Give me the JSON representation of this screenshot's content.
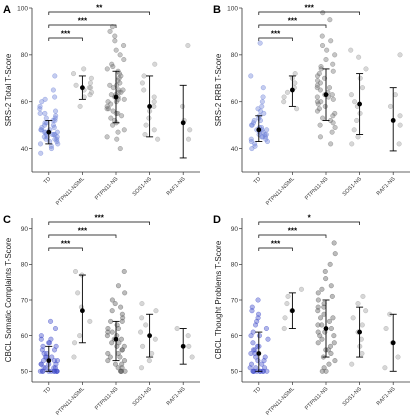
{
  "chart_data": [
    {
      "panel": "A",
      "type": "scatter",
      "ylabel": "SRS-2 Total T-Score",
      "ylim": [
        30,
        100
      ],
      "yticks": [
        40,
        60,
        80,
        100
      ],
      "categories": [
        "TD",
        "PTPN11-NSML",
        "PTPN11-NS",
        "SOS1-NS",
        "RAF1-NS"
      ],
      "colors": [
        "#6b7fd6",
        "#9a9a9a",
        "#6f6f6f",
        "#9a9a9a",
        "#9a9a9a"
      ],
      "summary": [
        {
          "mean": 47,
          "low": 42,
          "high": 52
        },
        {
          "mean": 66,
          "low": 61,
          "high": 71
        },
        {
          "mean": 62,
          "low": 51,
          "high": 73
        },
        {
          "mean": 58,
          "low": 45,
          "high": 71
        },
        {
          "mean": 51,
          "low": 36,
          "high": 67
        }
      ],
      "points": [
        [
          38,
          40,
          41,
          42,
          42,
          43,
          43,
          44,
          44,
          44,
          45,
          45,
          45,
          46,
          46,
          46,
          46,
          47,
          47,
          47,
          48,
          48,
          48,
          49,
          49,
          50,
          50,
          51,
          51,
          52,
          52,
          53,
          53,
          54,
          55,
          55,
          56,
          57,
          58,
          60,
          61,
          62,
          65,
          71
        ],
        [
          58,
          62,
          63,
          64,
          65,
          66,
          66,
          67,
          68,
          70,
          72,
          74
        ],
        [
          40,
          44,
          45,
          47,
          48,
          50,
          51,
          52,
          53,
          54,
          55,
          55,
          56,
          57,
          57,
          58,
          59,
          60,
          60,
          61,
          61,
          62,
          62,
          63,
          63,
          64,
          64,
          65,
          65,
          66,
          67,
          67,
          68,
          69,
          70,
          71,
          72,
          73,
          74,
          75,
          76,
          78,
          80,
          82,
          84,
          86,
          88,
          90,
          92
        ],
        [
          44,
          46,
          48,
          50,
          53,
          56,
          58,
          60,
          62,
          65,
          68,
          71,
          76
        ],
        [
          44,
          48,
          52,
          58,
          84
        ]
      ],
      "significance": [
        {
          "from": 0,
          "to": 1,
          "label": "***"
        },
        {
          "from": 0,
          "to": 2,
          "label": "***"
        },
        {
          "from": 0,
          "to": 3,
          "label": "**"
        }
      ]
    },
    {
      "panel": "B",
      "type": "scatter",
      "ylabel": "SRS-2 RRB T-Score",
      "ylim": [
        30,
        100
      ],
      "yticks": [
        40,
        60,
        80,
        100
      ],
      "categories": [
        "TD",
        "PTPN11-NSML",
        "PTPN11-NS",
        "SOS1-NS",
        "RAF1-NS"
      ],
      "colors": [
        "#6b7fd6",
        "#9a9a9a",
        "#6f6f6f",
        "#9a9a9a",
        "#9a9a9a"
      ],
      "summary": [
        {
          "mean": 48,
          "low": 43,
          "high": 54
        },
        {
          "mean": 65,
          "low": 58,
          "high": 71
        },
        {
          "mean": 63,
          "low": 52,
          "high": 74
        },
        {
          "mean": 59,
          "low": 46,
          "high": 72
        },
        {
          "mean": 52,
          "low": 39,
          "high": 66
        }
      ],
      "points": [
        [
          40,
          41,
          42,
          43,
          43,
          44,
          44,
          45,
          45,
          45,
          46,
          46,
          46,
          47,
          47,
          48,
          48,
          48,
          49,
          49,
          50,
          50,
          51,
          52,
          52,
          53,
          54,
          55,
          56,
          57,
          58,
          60,
          62,
          66,
          71,
          85
        ],
        [
          57,
          60,
          62,
          64,
          66,
          68,
          70,
          72
        ],
        [
          42,
          45,
          47,
          49,
          50,
          51,
          52,
          53,
          54,
          55,
          56,
          57,
          58,
          59,
          60,
          60,
          61,
          62,
          62,
          63,
          63,
          64,
          65,
          66,
          66,
          67,
          68,
          69,
          70,
          71,
          72,
          73,
          74,
          75,
          76,
          78,
          80,
          82,
          84,
          86,
          88,
          95,
          98
        ],
        [
          42,
          45,
          48,
          52,
          55,
          58,
          60,
          63,
          66,
          70,
          74,
          79,
          82
        ],
        [
          42,
          50,
          54,
          58,
          63,
          80
        ]
      ],
      "significance": [
        {
          "from": 0,
          "to": 1,
          "label": "***"
        },
        {
          "from": 0,
          "to": 2,
          "label": "***"
        },
        {
          "from": 0,
          "to": 3,
          "label": "***"
        }
      ]
    },
    {
      "panel": "C",
      "type": "scatter",
      "ylabel": "CBCL Somatic Complaints T-Score",
      "ylim": [
        47,
        93
      ],
      "yticks": [
        50,
        60,
        70,
        80,
        90
      ],
      "categories": [
        "TD",
        "PTPN11-NSML",
        "PTPN11-NS",
        "SOS1-NS",
        "RAF1-NS"
      ],
      "colors": [
        "#3a46c8",
        "#9a9a9a",
        "#555555",
        "#9a9a9a",
        "#9a9a9a"
      ],
      "summary": [
        {
          "mean": 53,
          "low": 50,
          "high": 57
        },
        {
          "mean": 67,
          "low": 58,
          "high": 77
        },
        {
          "mean": 59,
          "low": 53,
          "high": 64
        },
        {
          "mean": 60,
          "low": 54,
          "high": 66
        },
        {
          "mean": 57,
          "low": 52,
          "high": 62
        }
      ],
      "points": [
        [
          50,
          50,
          50,
          50,
          50,
          50,
          50,
          50,
          50,
          50,
          51,
          51,
          51,
          51,
          52,
          52,
          52,
          52,
          53,
          53,
          53,
          54,
          54,
          54,
          55,
          55,
          56,
          56,
          57,
          57,
          58,
          58,
          59,
          59,
          60,
          62,
          64
        ],
        [
          54,
          58,
          60,
          64,
          68,
          72,
          77,
          78
        ],
        [
          50,
          50,
          50,
          50,
          51,
          51,
          52,
          52,
          53,
          53,
          54,
          54,
          55,
          55,
          56,
          56,
          57,
          57,
          58,
          58,
          59,
          59,
          60,
          60,
          61,
          61,
          62,
          62,
          63,
          64,
          64,
          65,
          66,
          67,
          68,
          69,
          70,
          72,
          74,
          78
        ],
        [
          51,
          53,
          55,
          57,
          59,
          61,
          63,
          65,
          67,
          69
        ],
        [
          54,
          57,
          60,
          62
        ]
      ],
      "significance": [
        {
          "from": 0,
          "to": 1,
          "label": "***"
        },
        {
          "from": 0,
          "to": 2,
          "label": "***"
        },
        {
          "from": 0,
          "to": 3,
          "label": "***"
        }
      ]
    },
    {
      "panel": "D",
      "type": "scatter",
      "ylabel": "CBCL Thought Problems T-Score",
      "ylim": [
        47,
        93
      ],
      "yticks": [
        50,
        60,
        70,
        80,
        90
      ],
      "categories": [
        "TD",
        "PTPN11-NSML",
        "PTPN11-NS",
        "SOS1-NS",
        "RAF1-NS"
      ],
      "colors": [
        "#3a46c8",
        "#9a9a9a",
        "#555555",
        "#9a9a9a",
        "#9a9a9a"
      ],
      "summary": [
        {
          "mean": 55,
          "low": 50,
          "high": 61
        },
        {
          "mean": 67,
          "low": 62,
          "high": 72
        },
        {
          "mean": 62,
          "low": 54,
          "high": 70
        },
        {
          "mean": 61,
          "low": 54,
          "high": 68
        },
        {
          "mean": 58,
          "low": 50,
          "high": 66
        }
      ],
      "points": [
        [
          50,
          50,
          50,
          50,
          50,
          50,
          50,
          50,
          50,
          51,
          51,
          51,
          52,
          52,
          53,
          53,
          54,
          54,
          55,
          55,
          56,
          56,
          57,
          57,
          58,
          59,
          60,
          60,
          61,
          62,
          63,
          64,
          65,
          66,
          67,
          68,
          70
        ],
        [
          62,
          65,
          67,
          69,
          71,
          73
        ],
        [
          50,
          50,
          51,
          52,
          53,
          54,
          55,
          56,
          56,
          57,
          58,
          58,
          59,
          60,
          60,
          61,
          61,
          62,
          63,
          63,
          64,
          65,
          65,
          66,
          67,
          68,
          68,
          69,
          70,
          71,
          72,
          73,
          74,
          76,
          78,
          80,
          83,
          86
        ],
        [
          52,
          55,
          57,
          59,
          61,
          63,
          65,
          67,
          69,
          71
        ],
        [
          51,
          54,
          58,
          62,
          66
        ]
      ],
      "significance": [
        {
          "from": 0,
          "to": 1,
          "label": "***"
        },
        {
          "from": 0,
          "to": 2,
          "label": "***"
        },
        {
          "from": 0,
          "to": 3,
          "label": "*"
        }
      ]
    }
  ]
}
